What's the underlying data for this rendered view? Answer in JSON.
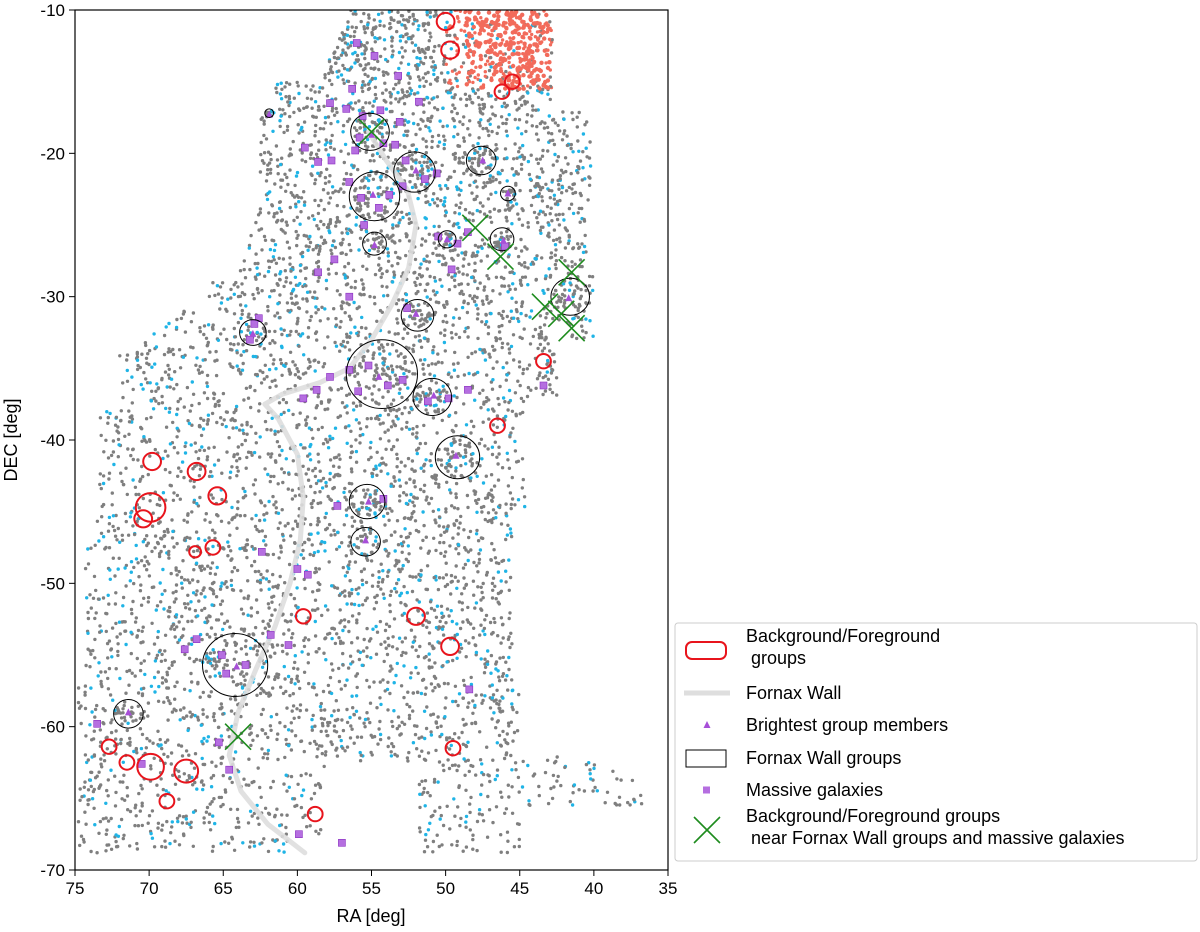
{
  "chart_data": {
    "type": "scatter",
    "xlabel": "RA [deg]",
    "ylabel": "DEC [deg]",
    "xlim": [
      75,
      35
    ],
    "ylim": [
      -70,
      -10
    ],
    "x_ticks": [
      75,
      70,
      65,
      60,
      55,
      50,
      45,
      40,
      35
    ],
    "y_ticks": [
      -10,
      -20,
      -30,
      -40,
      -50,
      -60,
      -70
    ],
    "legend_position": "lower-right-outside",
    "colors": {
      "field_gray": "#7f7f7f",
      "field_cyan": "#1fb4e6",
      "nearby_red": "#f26b5b",
      "bg_fg_groups": "#e8141c",
      "fornax_wall": "#dedede",
      "brightest_members": "#a74fd8",
      "wall_groups": "#000000",
      "massive_galaxies": "#b56ee0",
      "near_groups": "#1e8c1e"
    },
    "legend": [
      {
        "key": "bg_fg",
        "label_lines": [
          "Background/Foreground",
          " groups"
        ]
      },
      {
        "key": "wall",
        "label_lines": [
          "Fornax Wall"
        ]
      },
      {
        "key": "brightest",
        "label_lines": [
          "Brightest group members"
        ]
      },
      {
        "key": "wall_groups",
        "label_lines": [
          "Fornax Wall groups"
        ]
      },
      {
        "key": "massive",
        "label_lines": [
          "Massive galaxies"
        ]
      },
      {
        "key": "near",
        "label_lines": [
          "Background/Foreground groups",
          " near Fornax Wall groups and massive galaxies"
        ]
      }
    ],
    "fornax_wall": {
      "ra": [
        59.5,
        60.5,
        62.0,
        63.8,
        64.6,
        64.0,
        62.8,
        61.5,
        60.5,
        59.8,
        59.6,
        60.0,
        61.3,
        62.2,
        61.0,
        58.5,
        56.5,
        55.0,
        53.6,
        52.5,
        52.0,
        52.6,
        54.0,
        55.2
      ],
      "dec": [
        -68.8,
        -68.0,
        -66.8,
        -64.5,
        -62.0,
        -59.0,
        -56.0,
        -53.0,
        -50.0,
        -47.0,
        -44.0,
        -41.0,
        -38.5,
        -37.5,
        -36.8,
        -36.0,
        -35.0,
        -33.0,
        -30.5,
        -28.0,
        -25.0,
        -22.5,
        -20.5,
        -18.5
      ]
    },
    "wall_groups": [
      {
        "ra": 55.1,
        "dec": -18.5,
        "r": 1.3
      },
      {
        "ra": 52.1,
        "dec": -21.3,
        "r": 1.4
      },
      {
        "ra": 54.8,
        "dec": -23.0,
        "r": 1.7
      },
      {
        "ra": 47.6,
        "dec": -20.5,
        "r": 1.0
      },
      {
        "ra": 45.8,
        "dec": -22.8,
        "r": 0.5
      },
      {
        "ra": 54.8,
        "dec": -26.3,
        "r": 0.8
      },
      {
        "ra": 49.9,
        "dec": -26.0,
        "r": 0.6
      },
      {
        "ra": 46.2,
        "dec": -26.0,
        "r": 0.8
      },
      {
        "ra": 41.6,
        "dec": -30.0,
        "r": 1.3
      },
      {
        "ra": 63.0,
        "dec": -32.5,
        "r": 0.9
      },
      {
        "ra": 51.9,
        "dec": -31.3,
        "r": 1.1
      },
      {
        "ra": 54.3,
        "dec": -35.4,
        "r": 2.4
      },
      {
        "ra": 50.9,
        "dec": -37.0,
        "r": 1.3
      },
      {
        "ra": 49.2,
        "dec": -41.2,
        "r": 1.5
      },
      {
        "ra": 55.3,
        "dec": -44.3,
        "r": 1.2
      },
      {
        "ra": 55.4,
        "dec": -47.1,
        "r": 1.0
      },
      {
        "ra": 64.2,
        "dec": -55.7,
        "r": 2.2
      },
      {
        "ra": 71.4,
        "dec": -59.1,
        "r": 1.0
      },
      {
        "ra": 61.9,
        "dec": -17.2,
        "r": 0.3
      }
    ],
    "bg_fg_groups": [
      {
        "ra": 50.0,
        "dec": -10.8,
        "r": 0.6
      },
      {
        "ra": 49.7,
        "dec": -12.8,
        "r": 0.6
      },
      {
        "ra": 45.5,
        "dec": -15.0,
        "r": 0.5
      },
      {
        "ra": 46.2,
        "dec": -15.7,
        "r": 0.5
      },
      {
        "ra": 69.8,
        "dec": -41.5,
        "r": 0.6
      },
      {
        "ra": 66.8,
        "dec": -42.2,
        "r": 0.6
      },
      {
        "ra": 69.9,
        "dec": -44.7,
        "r": 1.0
      },
      {
        "ra": 70.4,
        "dec": -45.5,
        "r": 0.6
      },
      {
        "ra": 65.4,
        "dec": -43.9,
        "r": 0.6
      },
      {
        "ra": 66.9,
        "dec": -47.8,
        "r": 0.4
      },
      {
        "ra": 65.7,
        "dec": -47.5,
        "r": 0.5
      },
      {
        "ra": 43.4,
        "dec": -34.5,
        "r": 0.5
      },
      {
        "ra": 46.5,
        "dec": -39.0,
        "r": 0.5
      },
      {
        "ra": 59.6,
        "dec": -52.3,
        "r": 0.5
      },
      {
        "ra": 52.0,
        "dec": -52.3,
        "r": 0.6
      },
      {
        "ra": 49.7,
        "dec": -54.4,
        "r": 0.6
      },
      {
        "ra": 49.5,
        "dec": -61.5,
        "r": 0.5
      },
      {
        "ra": 72.7,
        "dec": -61.4,
        "r": 0.5
      },
      {
        "ra": 71.5,
        "dec": -62.5,
        "r": 0.5
      },
      {
        "ra": 69.9,
        "dec": -62.8,
        "r": 0.9
      },
      {
        "ra": 67.5,
        "dec": -63.1,
        "r": 0.8
      },
      {
        "ra": 68.8,
        "dec": -65.2,
        "r": 0.5
      },
      {
        "ra": 58.8,
        "dec": -66.1,
        "r": 0.5
      }
    ],
    "near_groups": [
      {
        "ra": 55.0,
        "dec": -18.5
      },
      {
        "ra": 48.0,
        "dec": -25.2
      },
      {
        "ra": 46.3,
        "dec": -27.2
      },
      {
        "ra": 41.5,
        "dec": -28.3
      },
      {
        "ra": 43.3,
        "dec": -30.7
      },
      {
        "ra": 42.2,
        "dec": -31.2
      },
      {
        "ra": 41.5,
        "dec": -32.2
      },
      {
        "ra": 64.0,
        "dec": -60.7
      }
    ],
    "brightest_members": [
      {
        "ra": 55.0,
        "dec": -18.7
      },
      {
        "ra": 52.0,
        "dec": -21.2
      },
      {
        "ra": 54.9,
        "dec": -22.9
      },
      {
        "ra": 47.5,
        "dec": -20.5
      },
      {
        "ra": 45.8,
        "dec": -22.8
      },
      {
        "ra": 54.8,
        "dec": -26.4
      },
      {
        "ra": 49.9,
        "dec": -26.0
      },
      {
        "ra": 46.1,
        "dec": -26.1
      },
      {
        "ra": 41.7,
        "dec": -30.1
      },
      {
        "ra": 63.0,
        "dec": -32.6
      },
      {
        "ra": 52.0,
        "dec": -31.2
      },
      {
        "ra": 54.5,
        "dec": -35.6
      },
      {
        "ra": 50.8,
        "dec": -36.9
      },
      {
        "ra": 49.3,
        "dec": -41.1
      },
      {
        "ra": 55.2,
        "dec": -44.3
      },
      {
        "ra": 55.4,
        "dec": -47.0
      },
      {
        "ra": 64.1,
        "dec": -55.8
      },
      {
        "ra": 71.4,
        "dec": -59.0
      },
      {
        "ra": 61.9,
        "dec": -17.3
      }
    ],
    "massive_galaxies": [
      {
        "ra": 56.0,
        "dec": -12.3
      },
      {
        "ra": 54.8,
        "dec": -13.2
      },
      {
        "ra": 53.2,
        "dec": -14.6
      },
      {
        "ra": 56.3,
        "dec": -15.5
      },
      {
        "ra": 57.8,
        "dec": -16.5
      },
      {
        "ra": 56.7,
        "dec": -16.9
      },
      {
        "ra": 55.6,
        "dec": -17.4
      },
      {
        "ra": 54.4,
        "dec": -17.0
      },
      {
        "ra": 53.1,
        "dec": -17.8
      },
      {
        "ra": 51.8,
        "dec": -16.4
      },
      {
        "ra": 55.8,
        "dec": -18.9
      },
      {
        "ra": 54.2,
        "dec": -19.3
      },
      {
        "ra": 56.1,
        "dec": -19.8
      },
      {
        "ra": 53.4,
        "dec": -19.4
      },
      {
        "ra": 52.7,
        "dec": -20.5
      },
      {
        "ra": 51.4,
        "dec": -21.8
      },
      {
        "ra": 50.6,
        "dec": -21.4
      },
      {
        "ra": 52.9,
        "dec": -22.3
      },
      {
        "ra": 55.7,
        "dec": -23.1
      },
      {
        "ra": 54.5,
        "dec": -23.8
      },
      {
        "ra": 53.8,
        "dec": -22.9
      },
      {
        "ra": 56.5,
        "dec": -22.0
      },
      {
        "ra": 58.6,
        "dec": -20.6
      },
      {
        "ra": 59.5,
        "dec": -19.6
      },
      {
        "ra": 55.5,
        "dec": -25.0
      },
      {
        "ra": 50.5,
        "dec": -25.8
      },
      {
        "ra": 49.2,
        "dec": -26.3
      },
      {
        "ra": 48.5,
        "dec": -25.5
      },
      {
        "ra": 46.0,
        "dec": -26.5
      },
      {
        "ra": 57.5,
        "dec": -27.4
      },
      {
        "ra": 58.6,
        "dec": -28.3
      },
      {
        "ra": 49.6,
        "dec": -28.1
      },
      {
        "ra": 56.5,
        "dec": -30.0
      },
      {
        "ra": 52.6,
        "dec": -30.8
      },
      {
        "ra": 62.6,
        "dec": -31.5
      },
      {
        "ra": 63.2,
        "dec": -33.0
      },
      {
        "ra": 57.8,
        "dec": -35.6
      },
      {
        "ra": 56.5,
        "dec": -35.1
      },
      {
        "ra": 55.2,
        "dec": -34.8
      },
      {
        "ra": 53.9,
        "dec": -36.2
      },
      {
        "ra": 52.9,
        "dec": -35.8
      },
      {
        "ra": 55.9,
        "dec": -36.6
      },
      {
        "ra": 58.7,
        "dec": -36.5
      },
      {
        "ra": 51.2,
        "dec": -37.3
      },
      {
        "ra": 49.8,
        "dec": -37.1
      },
      {
        "ra": 48.5,
        "dec": -36.5
      },
      {
        "ra": 59.6,
        "dec": -37.1
      },
      {
        "ra": 54.2,
        "dec": -44.1
      },
      {
        "ra": 57.3,
        "dec": -44.6
      },
      {
        "ra": 62.4,
        "dec": -47.8
      },
      {
        "ra": 60.0,
        "dec": -49.0
      },
      {
        "ra": 59.3,
        "dec": -49.4
      },
      {
        "ra": 66.8,
        "dec": -53.9
      },
      {
        "ra": 67.6,
        "dec": -54.6
      },
      {
        "ra": 65.1,
        "dec": -55.0
      },
      {
        "ra": 63.5,
        "dec": -55.7
      },
      {
        "ra": 64.8,
        "dec": -56.3
      },
      {
        "ra": 60.6,
        "dec": -54.3
      },
      {
        "ra": 61.8,
        "dec": -53.6
      },
      {
        "ra": 48.4,
        "dec": -57.4
      },
      {
        "ra": 73.5,
        "dec": -59.8
      },
      {
        "ra": 64.6,
        "dec": -63.0
      },
      {
        "ra": 59.9,
        "dec": -67.5
      },
      {
        "ra": 57.0,
        "dec": -68.1
      },
      {
        "ra": 70.5,
        "dec": -62.6
      },
      {
        "ra": 65.3,
        "dec": -61.1
      },
      {
        "ra": 43.4,
        "dec": -36.2
      },
      {
        "ra": 57.7,
        "dec": -20.5
      },
      {
        "ra": 62.9,
        "dec": -31.9
      }
    ],
    "field_galaxies": {
      "description_visible": false,
      "red_region": {
        "ra": [
          42.8,
          50.0
        ],
        "dec": [
          -15.5,
          -10.0
        ]
      }
    }
  }
}
